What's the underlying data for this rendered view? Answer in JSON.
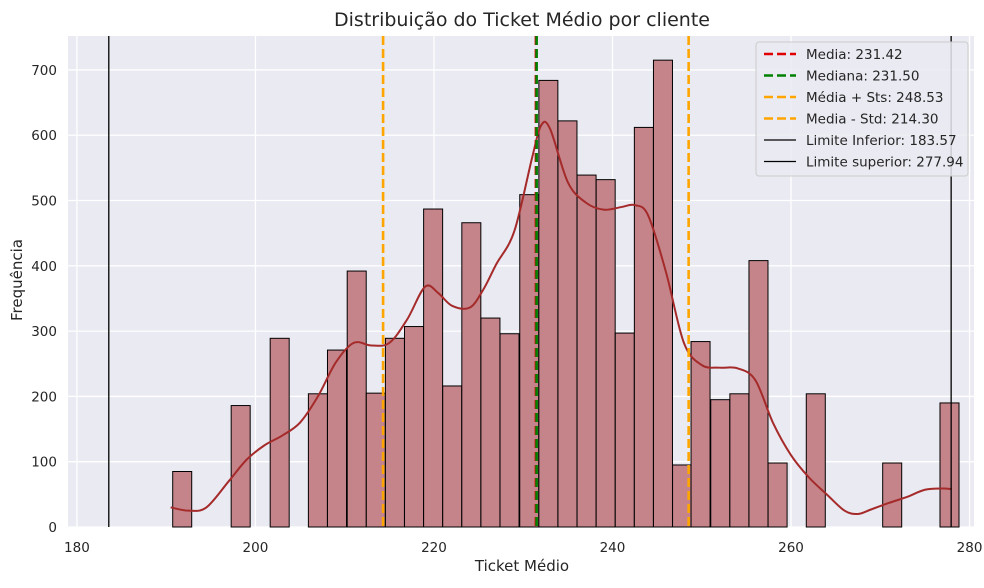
{
  "chart_data": {
    "type": "bar",
    "title": "Distribuição do Ticket Médio por cliente",
    "xlabel": "Ticket Médio",
    "ylabel": "Frequência",
    "xlim": [
      179,
      280.5
    ],
    "ylim": [
      0,
      752
    ],
    "xticks": [
      180,
      200,
      220,
      240,
      260,
      280
    ],
    "yticks": [
      0,
      100,
      200,
      300,
      400,
      500,
      600,
      700
    ],
    "grid": true,
    "legend_position": "top-right",
    "histogram": {
      "bin_width": 2.13,
      "bins": [
        {
          "x0": 190.73,
          "count": 85
        },
        {
          "x0": 197.28,
          "count": 186
        },
        {
          "x0": 201.65,
          "count": 289
        },
        {
          "x0": 205.93,
          "count": 204
        },
        {
          "x0": 208.07,
          "count": 271
        },
        {
          "x0": 210.28,
          "count": 392
        },
        {
          "x0": 212.42,
          "count": 205
        },
        {
          "x0": 214.56,
          "count": 289
        },
        {
          "x0": 216.7,
          "count": 307
        },
        {
          "x0": 218.84,
          "count": 487
        },
        {
          "x0": 220.98,
          "count": 216
        },
        {
          "x0": 223.12,
          "count": 466
        },
        {
          "x0": 225.26,
          "count": 320
        },
        {
          "x0": 227.4,
          "count": 296
        },
        {
          "x0": 229.61,
          "count": 509
        },
        {
          "x0": 231.75,
          "count": 684
        },
        {
          "x0": 233.89,
          "count": 622
        },
        {
          "x0": 236.03,
          "count": 539
        },
        {
          "x0": 238.17,
          "count": 532
        },
        {
          "x0": 240.31,
          "count": 297
        },
        {
          "x0": 242.45,
          "count": 612
        },
        {
          "x0": 244.59,
          "count": 715
        },
        {
          "x0": 246.73,
          "count": 95
        },
        {
          "x0": 248.8,
          "count": 284
        },
        {
          "x0": 251.01,
          "count": 195
        },
        {
          "x0": 253.15,
          "count": 204
        },
        {
          "x0": 255.29,
          "count": 408
        },
        {
          "x0": 257.43,
          "count": 98
        },
        {
          "x0": 261.71,
          "count": 204
        },
        {
          "x0": 270.27,
          "count": 98
        },
        {
          "x0": 276.69,
          "count": 190
        }
      ]
    },
    "kde": {
      "x": [
        190.5,
        192.5,
        194.5,
        197,
        199,
        201,
        203,
        205,
        207,
        209,
        211,
        213,
        215,
        217,
        219,
        220.5,
        222,
        224,
        225.5,
        227,
        229,
        231,
        232,
        233,
        235,
        237,
        239,
        241,
        242.5,
        244,
        246,
        248,
        250,
        252,
        254,
        256,
        258,
        260,
        262,
        264,
        266,
        267.5,
        269,
        271,
        273,
        275,
        277,
        278
      ],
      "y": [
        30,
        25,
        30,
        70,
        103,
        125,
        140,
        160,
        200,
        252,
        282,
        278,
        282,
        318,
        368,
        358,
        339,
        336,
        363,
        403,
        453,
        566,
        615,
        610,
        528,
        497,
        486,
        490,
        493,
        477,
        390,
        282,
        248,
        244,
        243,
        225,
        159,
        110,
        76,
        50,
        25,
        20,
        27,
        37,
        46,
        57,
        59,
        58
      ]
    },
    "vertical_lines": [
      {
        "label": "Media: 231.42",
        "x": 231.42,
        "color": "#e00000",
        "style": "dashed"
      },
      {
        "label": "Mediana: 231.50",
        "x": 231.5,
        "color": "#008000",
        "style": "dashed"
      },
      {
        "label": "Média + Sts: 248.53",
        "x": 248.53,
        "color": "#ffa500",
        "style": "dashed"
      },
      {
        "label": "Media - Std: 214.30",
        "x": 214.3,
        "color": "#ffa500",
        "style": "dashed"
      },
      {
        "label": "Limite Inferior: 183.57",
        "x": 183.57,
        "color": "#000000",
        "style": "solid"
      },
      {
        "label": "Limite superior: 277.94",
        "x": 277.94,
        "color": "#000000",
        "style": "solid"
      }
    ],
    "colors": {
      "bar_fill": "#c4848a",
      "bar_edge": "#000000",
      "kde_line": "#a52a2a",
      "plot_background": "#eaeaf2",
      "grid": "#ffffff"
    }
  }
}
